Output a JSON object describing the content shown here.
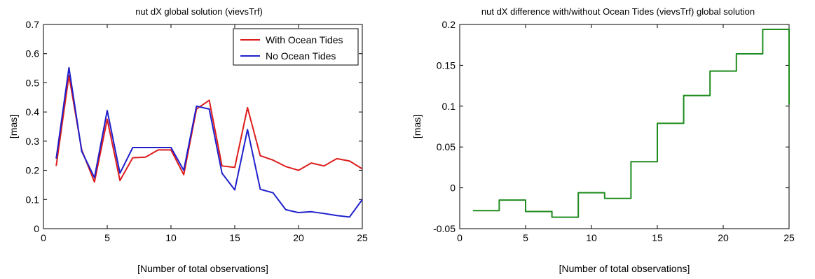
{
  "chart_data": [
    {
      "type": "line",
      "title": "nut dX global solution (vievsTrf)",
      "xlabel": "[Number of total observations]",
      "ylabel": "[mas]",
      "xlim": [
        0,
        25
      ],
      "ylim": [
        0,
        0.7
      ],
      "xticks": [
        0,
        5,
        10,
        15,
        20,
        25
      ],
      "xtick_labels": [
        "0",
        "5",
        "10",
        "15",
        "20",
        "25"
      ],
      "yticks": [
        0,
        0.1,
        0.2,
        0.3,
        0.4,
        0.5,
        0.6,
        0.7
      ],
      "ytick_labels": [
        "0",
        "0.1",
        "0.2",
        "0.3",
        "0.4",
        "0.5",
        "0.6",
        "0.7"
      ],
      "grid": false,
      "legend": "top-right",
      "x": [
        1,
        2,
        3,
        4,
        5,
        6,
        7,
        8,
        9,
        10,
        11,
        12,
        13,
        14,
        15,
        16,
        17,
        18,
        19,
        20,
        21,
        22,
        23,
        24,
        25
      ],
      "series": [
        {
          "name": "With Ocean Tides",
          "color": "#dd1c1c",
          "values": [
            0.215,
            0.525,
            0.27,
            0.16,
            0.375,
            0.165,
            0.243,
            0.245,
            0.27,
            0.27,
            0.185,
            0.41,
            0.44,
            0.215,
            0.21,
            0.415,
            0.25,
            0.235,
            0.213,
            0.2,
            0.225,
            0.215,
            0.24,
            0.232,
            0.205
          ]
        },
        {
          "name": "No Ocean Tides",
          "color": "#1f1fcc",
          "values": [
            0.24,
            0.552,
            0.265,
            0.175,
            0.405,
            0.19,
            0.278,
            0.278,
            0.278,
            0.278,
            0.2,
            0.42,
            0.41,
            0.19,
            0.133,
            0.34,
            0.135,
            0.123,
            0.065,
            0.055,
            0.058,
            0.052,
            0.045,
            0.04,
            0.1
          ]
        }
      ]
    },
    {
      "type": "line",
      "step": true,
      "title": "nut dX difference with/without Ocean Tides (vievsTrf) global solution",
      "xlabel": "[Number of total observations]",
      "ylabel": "[mas]",
      "xlim": [
        0,
        25
      ],
      "ylim": [
        -0.05,
        0.2
      ],
      "xticks": [
        0,
        5,
        10,
        15,
        20,
        25
      ],
      "xtick_labels": [
        "0",
        "5",
        "10",
        "15",
        "20",
        "25"
      ],
      "yticks": [
        -0.05,
        0,
        0.05,
        0.1,
        0.15,
        0.2
      ],
      "ytick_labels": [
        "-0.05",
        "0",
        "0.05",
        "0.1",
        "0.15",
        "0.2"
      ],
      "grid": false,
      "x": [
        1,
        3,
        5,
        7,
        9,
        11,
        13,
        15,
        17,
        19,
        21,
        23,
        25,
        25
      ],
      "series": [
        {
          "color": "#1f8c1f",
          "values": [
            -0.028,
            -0.015,
            -0.029,
            -0.036,
            -0.006,
            -0.013,
            0.032,
            0.079,
            0.113,
            0.143,
            0.164,
            0.194,
            0.194,
            0.102
          ]
        }
      ]
    }
  ]
}
